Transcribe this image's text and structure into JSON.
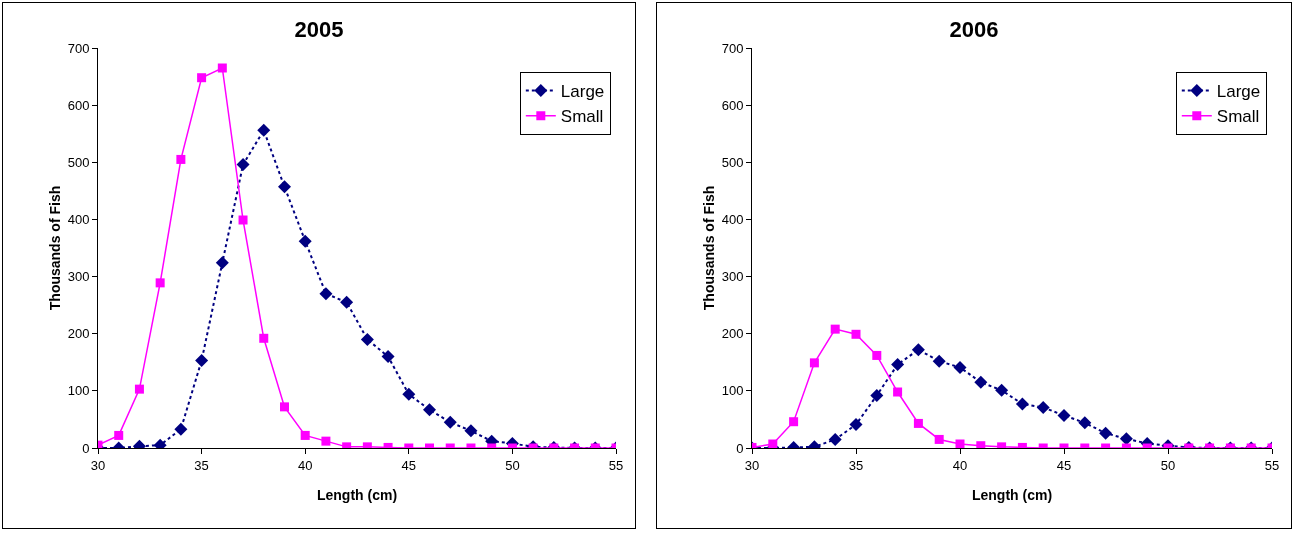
{
  "chart_data": [
    {
      "type": "line",
      "title": "2005",
      "xlabel": "Length (cm)",
      "ylabel": "Thousands of Fish",
      "x": [
        30,
        31,
        32,
        33,
        34,
        35,
        36,
        37,
        38,
        39,
        40,
        41,
        42,
        43,
        44,
        45,
        46,
        47,
        48,
        49,
        50,
        51,
        52,
        53,
        54,
        55
      ],
      "xlim": [
        30,
        55
      ],
      "xticks": [
        30,
        35,
        40,
        45,
        50,
        55
      ],
      "ylim": [
        0,
        700
      ],
      "yticks": [
        0,
        100,
        200,
        300,
        400,
        500,
        600,
        700
      ],
      "grid": false,
      "legend": "top right",
      "series": [
        {
          "name": "Large",
          "color": "#000080",
          "marker": "diamond",
          "line_style": "dotted",
          "values": [
            0,
            0,
            3,
            5,
            33,
            153,
            324,
            496,
            556,
            457,
            362,
            270,
            255,
            190,
            160,
            94,
            67,
            45,
            30,
            12,
            8,
            2,
            1,
            0,
            0,
            0
          ]
        },
        {
          "name": "Small",
          "color": "#ff00ff",
          "marker": "square",
          "line_style": "solid",
          "values": [
            5,
            22,
            103,
            289,
            505,
            648,
            665,
            399,
            192,
            72,
            22,
            12,
            2,
            2,
            1,
            0,
            0,
            0,
            0,
            0,
            0,
            0,
            0,
            0,
            0,
            0
          ]
        }
      ]
    },
    {
      "type": "line",
      "title": "2006",
      "xlabel": "Length (cm)",
      "ylabel": "Thousands of Fish",
      "x": [
        30,
        31,
        32,
        33,
        34,
        35,
        36,
        37,
        38,
        39,
        40,
        41,
        42,
        43,
        44,
        45,
        46,
        47,
        48,
        49,
        50,
        51,
        52,
        53,
        54,
        55
      ],
      "xlim": [
        30,
        55
      ],
      "xticks": [
        30,
        35,
        40,
        45,
        50,
        55
      ],
      "ylim": [
        0,
        700
      ],
      "yticks": [
        0,
        100,
        200,
        300,
        400,
        500,
        600,
        700
      ],
      "grid": false,
      "legend": "top right",
      "series": [
        {
          "name": "Large",
          "color": "#000080",
          "marker": "diamond",
          "line_style": "dotted",
          "values": [
            0,
            0,
            1,
            2,
            15,
            41,
            92,
            146,
            172,
            152,
            141,
            115,
            101,
            77,
            71,
            57,
            44,
            26,
            16,
            8,
            4,
            1,
            0,
            0,
            0,
            0
          ]
        },
        {
          "name": "Small",
          "color": "#ff00ff",
          "marker": "square",
          "line_style": "solid",
          "values": [
            1,
            7,
            46,
            149,
            208,
            199,
            162,
            98,
            43,
            15,
            7,
            4,
            2,
            1,
            0,
            0,
            0,
            0,
            0,
            0,
            0,
            0,
            0,
            0,
            0,
            0
          ]
        }
      ]
    }
  ]
}
